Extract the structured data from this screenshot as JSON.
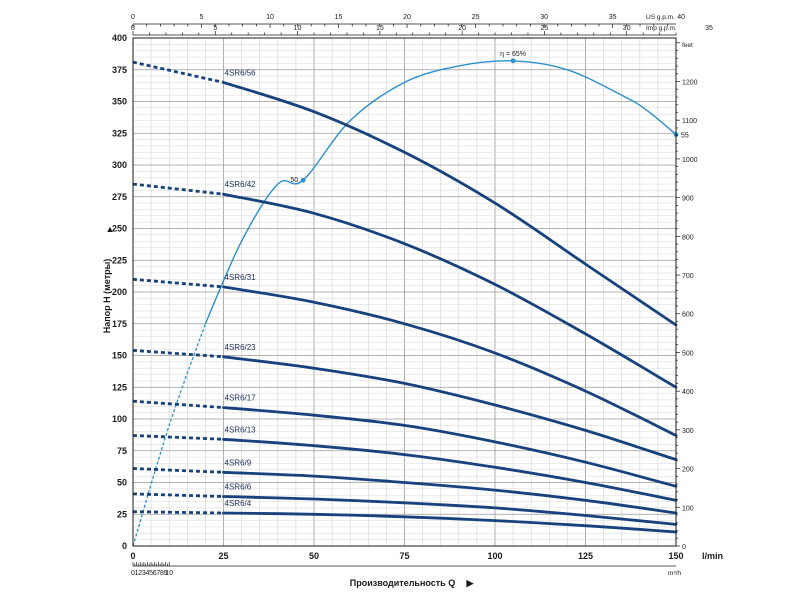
{
  "chart_data": {
    "type": "line",
    "xlabel": "Производительность Q",
    "ylabel": "Напор H (метры)",
    "x_unit": "l/min",
    "xlim": [
      0,
      150
    ],
    "ylim": [
      0,
      400
    ],
    "x_ticks": [
      0,
      25,
      50,
      75,
      100,
      125,
      150
    ],
    "y_ticks": [
      0,
      25,
      50,
      75,
      100,
      125,
      150,
      175,
      200,
      225,
      250,
      275,
      300,
      325,
      350,
      375,
      400
    ],
    "secondary_axes": {
      "top_us": {
        "unit": "US g.p.m.",
        "max": 40,
        "ticks": [
          0,
          5,
          10,
          15,
          20,
          25,
          30,
          35,
          40
        ]
      },
      "top_imp": {
        "unit": "Imp g.p.m.",
        "max": 35,
        "ticks": [
          0,
          5,
          10,
          15,
          20,
          25,
          30,
          35
        ]
      },
      "bottom_m3h": {
        "unit": "m³/h",
        "max": 10,
        "ticks": [
          0,
          1,
          2,
          3,
          4,
          5,
          6,
          7,
          8,
          9,
          10
        ]
      },
      "right_feet": {
        "unit": "feet",
        "max": 1300,
        "ticks": [
          0,
          100,
          200,
          300,
          400,
          500,
          600,
          700,
          800,
          900,
          1000,
          1100,
          1200
        ]
      }
    },
    "grid": true,
    "recommended_range": [
      25,
      150
    ],
    "series": [
      {
        "name": "4SR6/56",
        "x": [
          0,
          25,
          50,
          75,
          100,
          125,
          150
        ],
        "y": [
          381,
          365,
          342,
          310,
          270,
          222,
          174
        ]
      },
      {
        "name": "4SR6/42",
        "x": [
          0,
          25,
          50,
          75,
          100,
          125,
          150
        ],
        "y": [
          285,
          277,
          262,
          238,
          206,
          167,
          125
        ]
      },
      {
        "name": "4SR6/31",
        "x": [
          0,
          25,
          50,
          75,
          100,
          125,
          150
        ],
        "y": [
          210,
          204,
          192,
          175,
          152,
          122,
          87
        ]
      },
      {
        "name": "4SR6/23",
        "x": [
          0,
          25,
          50,
          75,
          100,
          125,
          150
        ],
        "y": [
          154,
          149,
          140,
          128,
          111,
          91,
          68
        ]
      },
      {
        "name": "4SR6/17",
        "x": [
          0,
          25,
          50,
          75,
          100,
          125,
          150
        ],
        "y": [
          114,
          109,
          103,
          95,
          82,
          66,
          47
        ]
      },
      {
        "name": "4SR6/13",
        "x": [
          0,
          25,
          50,
          75,
          100,
          125,
          150
        ],
        "y": [
          87,
          84,
          79,
          72,
          62,
          50,
          36
        ]
      },
      {
        "name": "4SR6/9",
        "x": [
          0,
          25,
          50,
          75,
          100,
          125,
          150
        ],
        "y": [
          61,
          58,
          55,
          50,
          44,
          36,
          26
        ]
      },
      {
        "name": "4SR6/6",
        "x": [
          0,
          25,
          50,
          75,
          100,
          125,
          150
        ],
        "y": [
          41,
          39,
          37,
          34,
          30,
          24,
          17
        ]
      },
      {
        "name": "4SR6/4",
        "x": [
          0,
          25,
          50,
          75,
          100,
          125,
          150
        ],
        "y": [
          27,
          26,
          25,
          23,
          20,
          16,
          11
        ]
      }
    ],
    "efficiency_curve": {
      "x": [
        0,
        10,
        20,
        30,
        40,
        47,
        60,
        75,
        90,
        105,
        120,
        135,
        142,
        150
      ],
      "y": [
        0,
        95,
        175,
        240,
        285,
        288,
        335,
        365,
        378,
        382,
        375,
        355,
        343,
        324
      ],
      "points": [
        {
          "label": "50",
          "x": 47,
          "y": 288
        },
        {
          "label": "η = 65%",
          "x": 105,
          "y": 382
        },
        {
          "label": "55",
          "x": 150,
          "y": 324
        }
      ]
    }
  }
}
